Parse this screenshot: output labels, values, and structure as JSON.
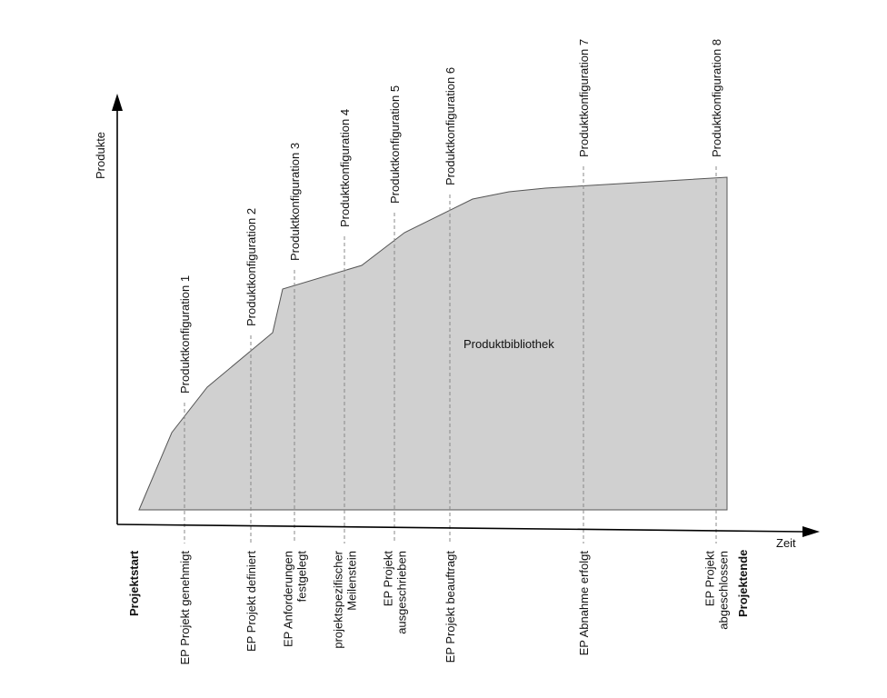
{
  "axes": {
    "y_label": "Produkte",
    "x_label": "Zeit"
  },
  "area": {
    "label": "Produktbibliothek",
    "fill": "#d0d0d0",
    "stroke": "#555555"
  },
  "project": {
    "start_label": "Projektstart",
    "end_label": "Projektende"
  },
  "milestones": [
    {
      "config": "Produktkonfiguration 1",
      "event": [
        "EP Projekt genehmigt"
      ]
    },
    {
      "config": "Produktkonfiguration 2",
      "event": [
        "EP Projekt definiert"
      ]
    },
    {
      "config": "Produktkonfiguration 3",
      "event": [
        "EP Anforderungen",
        "festgelegt"
      ]
    },
    {
      "config": "Produktkonfiguration 4",
      "event": [
        "projektspezifischer",
        "Meilenstein"
      ]
    },
    {
      "config": "Produktkonfiguration 5",
      "event": [
        "EP Projekt",
        "ausgeschrieben"
      ]
    },
    {
      "config": "Produktkonfiguration 6",
      "event": [
        "EP Projekt beauftragt"
      ]
    },
    {
      "config": "Produktkonfiguration 7",
      "event": [
        "EP Abnahme erfolgt"
      ]
    },
    {
      "config": "Produktkonfiguration 8",
      "event": [
        "EP Projekt",
        "abgeschlossen"
      ]
    }
  ]
}
